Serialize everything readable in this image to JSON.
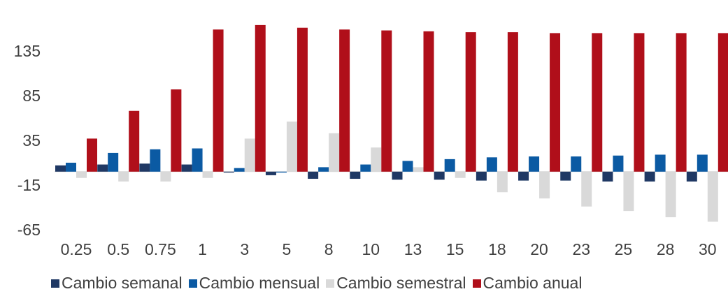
{
  "chart_data": {
    "type": "bar",
    "title": "",
    "xlabel": "",
    "ylabel": "",
    "ylim": [
      -65,
      150
    ],
    "yticks": [
      135,
      85,
      35,
      -15,
      -65
    ],
    "grid": false,
    "legend_position": "bottom",
    "categories": [
      "0.25",
      "0.5",
      "0.75",
      "1",
      "3",
      "5",
      "8",
      "10",
      "13",
      "15",
      "18",
      "20",
      "23",
      "25",
      "28",
      "30"
    ],
    "series": [
      {
        "name": "Cambio semanal",
        "color": "#1f3864",
        "values": [
          7,
          8,
          9,
          8,
          -1,
          -4,
          -8,
          -8,
          -9,
          -9,
          -10,
          -10,
          -10,
          -11,
          -11,
          -11
        ]
      },
      {
        "name": "Cambio mensual",
        "color": "#0b5aa3",
        "values": [
          10,
          21,
          25,
          26,
          4,
          -1,
          5,
          8,
          12,
          14,
          16,
          17,
          17,
          18,
          19,
          19
        ]
      },
      {
        "name": "Cambio semestral",
        "color": "#d9d9d9",
        "values": [
          -7,
          -11,
          -11,
          -7,
          37,
          56,
          43,
          27,
          5,
          -7,
          -23,
          -30,
          -39,
          -44,
          -51,
          -56
        ]
      },
      {
        "name": "Cambio anual",
        "color": "#b00f1a",
        "values": [
          37,
          68,
          92,
          159,
          164,
          161,
          159,
          158,
          157,
          156,
          156,
          155,
          155,
          155,
          155,
          155
        ]
      }
    ]
  }
}
